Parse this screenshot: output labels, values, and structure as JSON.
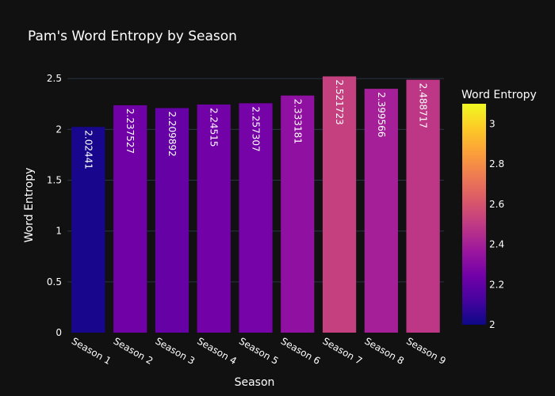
{
  "chart_data": {
    "type": "bar",
    "title": "Pam's Word Entropy by Season",
    "xlabel": "Season",
    "ylabel": "Word Entropy",
    "categories": [
      "Season 1",
      "Season 2",
      "Season 3",
      "Season 4",
      "Season 5",
      "Season 6",
      "Season 7",
      "Season 8",
      "Season 9"
    ],
    "values": [
      2.02441,
      2.237527,
      2.209892,
      2.24515,
      2.257307,
      2.333181,
      2.521723,
      2.399566,
      2.488717
    ],
    "value_labels": [
      "2.02441",
      "2.237527",
      "2.209892",
      "2.24515",
      "2.257307",
      "2.333181",
      "2.521723",
      "2.399566",
      "2.488717"
    ],
    "ylim": [
      0,
      2.65
    ],
    "yticks": [
      0,
      0.5,
      1,
      1.5,
      2,
      2.5
    ],
    "ytick_labels": [
      "0",
      "0.5",
      "1",
      "1.5",
      "2",
      "2.5"
    ],
    "grid": true,
    "colorbar": {
      "title": "Word Entropy",
      "range": [
        2,
        3.1
      ],
      "ticks": [
        2,
        2.2,
        2.4,
        2.6,
        2.8,
        3
      ],
      "tick_labels": [
        "2",
        "2.2",
        "2.4",
        "2.6",
        "2.8",
        "3"
      ],
      "colorscale": [
        "#0d0887",
        "#46039f",
        "#7201a8",
        "#9c179e",
        "#bd3786",
        "#d8576b",
        "#ed7953",
        "#fb9f3a",
        "#fdca26",
        "#f0f921"
      ]
    },
    "colors": {
      "background": "#111111",
      "grid": "#283442",
      "text": "#ffffff"
    }
  }
}
